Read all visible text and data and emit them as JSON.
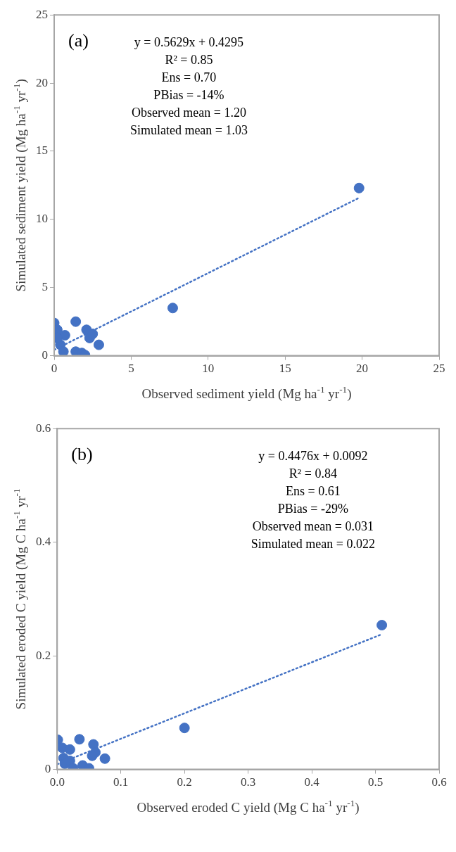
{
  "chart_data": [
    {
      "type": "scatter",
      "xlabel": "Observed sediment yield (Mg ha$^{-1}$ yr$^{-1}$)",
      "ylabel": "Simulated sediment yield (Mg ha$^{-1}$ yr$^{-1}$)",
      "annotations": [
        "(a)",
        "y = 0.5629x + 0.4295",
        "R² = 0.85",
        "Ens = 0.70",
        "PBias = -14%",
        "Observed mean = 1.20",
        "Simulated mean = 1.03"
      ],
      "xlim": [
        0,
        25
      ],
      "ylim": [
        0,
        25
      ],
      "xticks": [
        0,
        5,
        10,
        15,
        20,
        25
      ],
      "yticks": [
        0,
        5,
        10,
        15,
        20,
        25
      ],
      "grid": false,
      "marker": "circle",
      "series": [
        {
          "color": "#4472c4",
          "x": [
            0,
            0.2,
            1.4,
            2.1,
            2.3,
            2.5,
            2.9,
            1.4,
            1.8,
            2.0,
            0.7,
            0.4,
            0.2,
            7.7,
            19.8,
            0.6
          ],
          "values": [
            2.4,
            1.9,
            2.5,
            1.9,
            1.3,
            1.6,
            0.8,
            0.3,
            0.2,
            0.05,
            1.5,
            0.8,
            1.3,
            3.5,
            12.3,
            0.3
          ]
        },
        {
          "type": "line",
          "color": "#4472c4",
          "line_style": "dotted",
          "marker": "none",
          "x": [
            0,
            19.8
          ],
          "values": [
            0.43,
            11.58
          ]
        }
      ]
    },
    {
      "type": "scatter",
      "xlabel": "Observed eroded C yield (Mg C ha$^{-1}$ yr$^{-1}$)",
      "ylabel": "Simulated eroded C yield (Mg C ha$^{-1}$ yr$^{-1}$",
      "annotations": [
        "(b)",
        "y = 0.4476x + 0.0092",
        "R² = 0.84",
        "Ens = 0.61",
        "PBias = -29%",
        "Observed mean = 0.031",
        "Simulated mean = 0.022"
      ],
      "xlim": [
        0,
        0.6
      ],
      "ylim": [
        0,
        0.6
      ],
      "xticks": [
        {
          "value": 0,
          "label": "0.0"
        },
        0.1,
        0.2,
        0.3,
        0.4,
        0.5,
        0.6
      ],
      "yticks": [
        0,
        0.2,
        0.4,
        0.6
      ],
      "grid": false,
      "marker": "circle",
      "series": [
        {
          "color": "#4472c4",
          "x": [
            0.51,
            0.2,
            0.001,
            0.035,
            0.057,
            0.06,
            0.055,
            0.075,
            0.008,
            0.02,
            0.01,
            0.04,
            0.05,
            0.012,
            0.02,
            0.025
          ],
          "values": [
            0.254,
            0.073,
            0.052,
            0.053,
            0.044,
            0.03,
            0.024,
            0.019,
            0.038,
            0.035,
            0.02,
            0.007,
            0.002,
            0.01,
            0.015,
            0.002
          ]
        },
        {
          "type": "line",
          "color": "#4472c4",
          "line_style": "dotted",
          "marker": "none",
          "x": [
            0,
            0.51
          ],
          "values": [
            0.009,
            0.238
          ]
        }
      ]
    }
  ]
}
